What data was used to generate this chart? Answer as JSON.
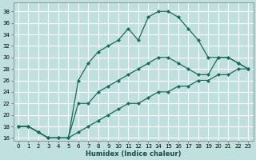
{
  "xlabel": "Humidex (Indice chaleur)",
  "bg_color": "#c0e0e0",
  "grid_color": "#ffffff",
  "line_color": "#1a6b5a",
  "xlim_min": -0.5,
  "xlim_max": 23.5,
  "ylim_min": 15.5,
  "ylim_max": 39.5,
  "xticks": [
    0,
    1,
    2,
    3,
    4,
    5,
    6,
    7,
    8,
    9,
    10,
    11,
    12,
    13,
    14,
    15,
    16,
    17,
    18,
    19,
    20,
    21,
    22,
    23
  ],
  "yticks": [
    16,
    18,
    20,
    22,
    24,
    26,
    28,
    30,
    32,
    34,
    36,
    38
  ],
  "curve1_x": [
    0,
    1,
    2,
    3,
    4,
    5,
    6,
    7,
    8,
    9,
    10,
    11,
    12,
    13,
    14,
    15,
    16,
    17,
    18,
    19,
    20,
    21,
    22,
    23
  ],
  "curve1_y": [
    18,
    18,
    17,
    16,
    16,
    16,
    26,
    29,
    31,
    32,
    33,
    35,
    33,
    37,
    38,
    38,
    37,
    35,
    33,
    30,
    30,
    30,
    29,
    28
  ],
  "curve2_x": [
    0,
    1,
    2,
    3,
    4,
    5,
    6,
    7,
    8,
    9,
    10,
    11,
    12,
    13,
    14,
    15,
    16,
    17,
    18,
    19,
    20,
    21,
    22,
    23
  ],
  "curve2_y": [
    18,
    18,
    17,
    16,
    16,
    16,
    22,
    22,
    24,
    25,
    26,
    27,
    28,
    29,
    30,
    30,
    29,
    28,
    27,
    27,
    30,
    30,
    29,
    28
  ],
  "curve3_x": [
    0,
    1,
    2,
    3,
    4,
    5,
    6,
    7,
    8,
    9,
    10,
    11,
    12,
    13,
    14,
    15,
    16,
    17,
    18,
    19,
    20,
    21,
    22,
    23
  ],
  "curve3_y": [
    18,
    18,
    17,
    16,
    16,
    16,
    17,
    18,
    19,
    20,
    21,
    22,
    22,
    23,
    24,
    24,
    25,
    25,
    26,
    26,
    27,
    27,
    28,
    28
  ],
  "marker_size": 2.5,
  "linewidth": 0.9,
  "xlabel_fontsize": 6.0,
  "tick_fontsize": 5.0
}
